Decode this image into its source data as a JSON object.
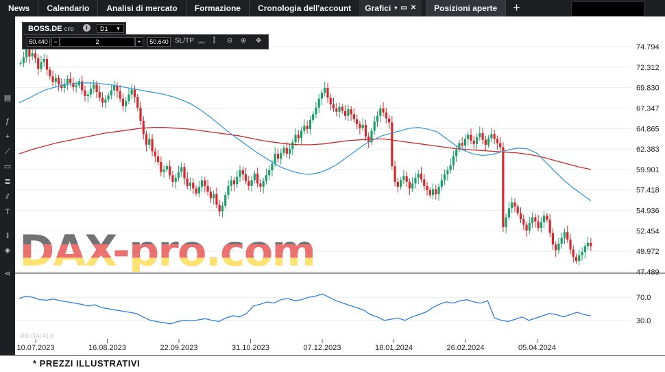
{
  "topbar": {
    "tabs": [
      "News",
      "Calendario",
      "Analisi di mercato",
      "Formazione",
      "Cronologia dell'account"
    ],
    "active_tab": "Grafici",
    "positions_tab": "Posizioni aperte",
    "add_tab_icon": "plus-icon",
    "right_icons": [
      "panel-icon",
      "settings-icon",
      "bell-icon",
      "wifi-icon"
    ]
  },
  "toolbox": {
    "symbol": "BOSS.DE",
    "symbol_type": "CFD",
    "timeframe": "D1",
    "bid": "50.440",
    "quantity": "2",
    "ask": "50.640",
    "sltp_label": "SL/TP",
    "minus": "−",
    "plus": "+"
  },
  "watermark": "DAX-pro.com",
  "footnote": "* PREZZI ILLUSTRATIVI",
  "rsi_label": "RSI (14) 41.6",
  "colors": {
    "up": "#1aa06a",
    "down": "#d9262b",
    "ma_fast": "#3a9ad9",
    "ma_slow": "#cc2a2a",
    "rsi": "#2c7be5"
  },
  "chart_data": {
    "type": "candlestick",
    "price_ticks": [
      "74.794",
      "72.312",
      "69.830",
      "67.347",
      "64.865",
      "62.383",
      "59.901",
      "57.418",
      "54.936",
      "52.454",
      "49.972",
      "47.489"
    ],
    "price_range": [
      47.489,
      74.794
    ],
    "x_tick_labels": [
      "10.07.2023",
      "16.08.2023",
      "22.09.2023",
      "31.10.2023",
      "07.12.2023",
      "18.01.2024",
      "26.02.2024",
      "05.04.2024"
    ],
    "close_series": [
      72.8,
      73.5,
      74.8,
      73.6,
      74.0,
      73.4,
      72.1,
      72.9,
      73.3,
      72.0,
      71.2,
      70.5,
      71.0,
      70.2,
      69.8,
      70.3,
      70.9,
      70.4,
      69.9,
      70.1,
      70.6,
      69.5,
      68.8,
      69.0,
      69.7,
      70.2,
      69.3,
      68.6,
      68.0,
      68.4,
      68.9,
      69.5,
      70.1,
      69.4,
      68.5,
      67.6,
      68.2,
      69.0,
      69.6,
      68.7,
      67.4,
      65.8,
      64.2,
      62.9,
      63.6,
      62.1,
      61.5,
      60.8,
      59.6,
      59.9,
      60.3,
      59.2,
      58.4,
      58.9,
      59.6,
      60.2,
      58.8,
      57.9,
      58.3,
      57.6,
      57.0,
      57.8,
      58.6,
      57.9,
      57.2,
      56.4,
      56.9,
      55.6,
      54.8,
      55.5,
      56.8,
      57.9,
      58.6,
      58.1,
      59.0,
      59.8,
      59.3,
      58.5,
      57.9,
      58.6,
      59.4,
      58.2,
      57.8,
      58.5,
      59.2,
      59.8,
      60.6,
      61.8,
      61.2,
      61.9,
      62.5,
      61.8,
      62.4,
      63.2,
      64.1,
      63.7,
      64.6,
      65.2,
      64.8,
      65.9,
      66.6,
      67.4,
      68.5,
      69.2,
      69.8,
      68.6,
      67.8,
      67.3,
      66.9,
      67.5,
      67.0,
      66.4,
      67.2,
      66.6,
      66.0,
      65.4,
      64.9,
      65.3,
      63.9,
      63.2,
      64.6,
      65.7,
      66.4,
      67.3,
      66.8,
      66.1,
      65.6,
      60.3,
      58.4,
      57.8,
      58.6,
      59.1,
      58.4,
      57.6,
      58.2,
      58.9,
      59.4,
      58.7,
      57.9,
      57.4,
      56.8,
      57.5,
      56.9,
      57.8,
      58.6,
      59.3,
      59.8,
      60.4,
      61.5,
      62.3,
      63.1,
      62.8,
      63.6,
      64.1,
      63.4,
      63.0,
      63.8,
      64.3,
      63.5,
      62.9,
      63.7,
      64.2,
      63.6,
      63.1,
      62.6,
      52.9,
      54.1,
      55.2,
      55.9,
      55.4,
      54.6,
      53.9,
      53.2,
      52.5,
      53.4,
      54.1,
      53.6,
      52.8,
      53.5,
      54.3,
      53.8,
      52.2,
      50.8,
      50.1,
      50.9,
      51.6,
      52.3,
      51.4,
      50.2,
      49.3,
      48.8,
      49.5,
      49.9,
      50.6,
      51.0,
      50.6
    ],
    "ma_fast": [
      68.0,
      68.5,
      69.1,
      69.6,
      69.9,
      70.2,
      70.3,
      70.4,
      70.4,
      70.3,
      70.2,
      70.0,
      69.8,
      69.6,
      69.4,
      69.2,
      69.0,
      68.7,
      68.3,
      67.8,
      67.1,
      66.3,
      65.4,
      64.5,
      63.7,
      62.9,
      62.1,
      61.4,
      60.7,
      60.1,
      59.7,
      59.4,
      59.3,
      59.5,
      59.9,
      60.5,
      61.3,
      62.1,
      62.9,
      63.5,
      64.0,
      64.3,
      64.6,
      64.9,
      65.0,
      64.8,
      64.5,
      63.7,
      62.9,
      62.2,
      61.8,
      61.6,
      61.7,
      62.0,
      62.3,
      62.5,
      62.4,
      61.9,
      60.8,
      59.7,
      58.6,
      57.7,
      56.9,
      56.1
    ],
    "ma_slow": [
      61.8,
      62.3,
      62.7,
      63.1,
      63.4,
      63.7,
      64.0,
      64.3,
      64.5,
      64.7,
      64.9,
      65.0,
      65.0,
      64.9,
      64.8,
      64.6,
      64.4,
      64.2,
      64.0,
      63.7,
      63.4,
      63.2,
      63.0,
      62.9,
      62.9,
      63.0,
      63.2,
      63.4,
      63.5,
      63.6,
      63.6,
      63.4,
      63.2,
      63.0,
      62.8,
      62.6,
      62.4,
      62.3,
      62.2,
      62.1,
      62.0,
      61.9,
      61.7,
      61.4,
      61.0,
      60.6,
      60.2,
      59.9
    ],
    "rsi_ticks": [
      "70.0",
      "30.0"
    ],
    "rsi_range": [
      0,
      100
    ],
    "rsi": [
      68,
      72,
      70,
      66,
      65,
      67,
      64,
      62,
      60,
      58,
      55,
      57,
      52,
      50,
      48,
      46,
      44,
      42,
      36,
      30,
      28,
      26,
      24,
      28,
      30,
      29,
      31,
      33,
      30,
      28,
      34,
      38,
      36,
      42,
      55,
      58,
      62,
      60,
      66,
      68,
      64,
      66,
      70,
      72,
      76,
      70,
      64,
      60,
      56,
      52,
      48,
      40,
      36,
      30,
      32,
      34,
      30,
      36,
      40,
      44,
      52,
      58,
      62,
      60,
      64,
      66,
      62,
      60,
      64,
      34,
      30,
      28,
      32,
      36,
      30,
      34,
      38,
      42,
      40,
      36,
      40,
      44,
      40,
      38
    ],
    "x_range_days": [
      0,
      275
    ]
  }
}
